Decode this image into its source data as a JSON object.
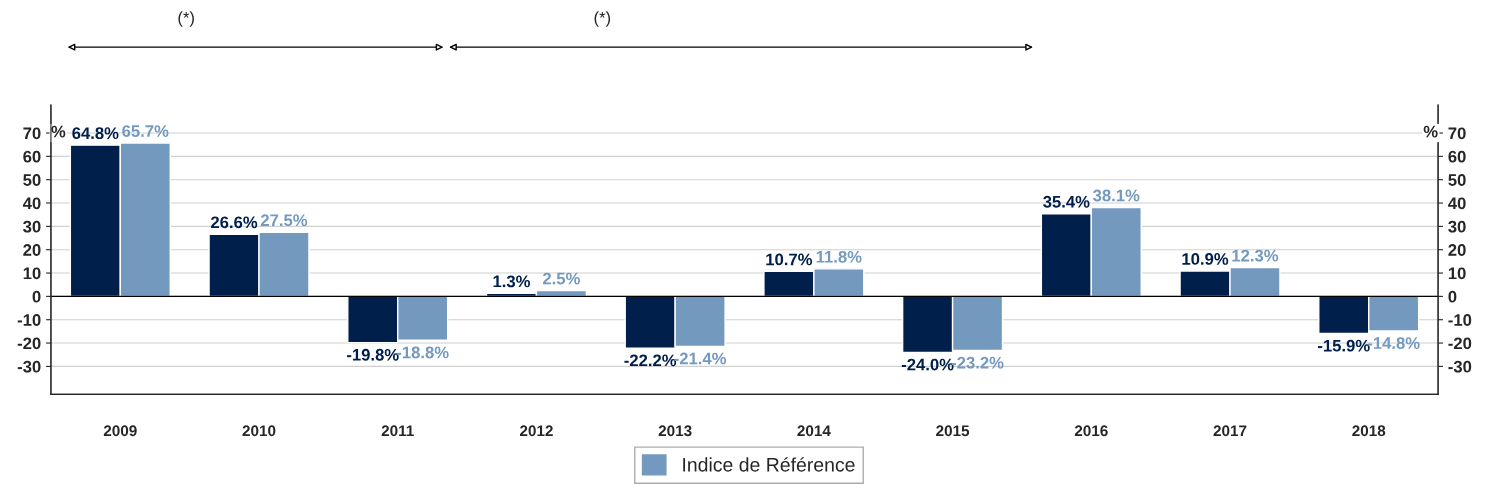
{
  "chart_data": {
    "type": "bar",
    "categories": [
      "2009",
      "2010",
      "2011",
      "2012",
      "2013",
      "2014",
      "2015",
      "2016",
      "2017",
      "2018"
    ],
    "series": [
      {
        "color": "#001f4b",
        "values": [
          64.8,
          26.6,
          -19.8,
          1.3,
          -22.2,
          10.7,
          -24.0,
          35.4,
          10.9,
          -15.9
        ],
        "value_labels": [
          "64.8%",
          "26.6%",
          "-19.8%",
          "1.3%",
          "-22.2%",
          "10.7%",
          "-24.0%",
          "35.4%",
          "10.9%",
          "-15.9%"
        ]
      },
      {
        "name": "Indice de Référence",
        "color": "#7399bf",
        "values": [
          65.7,
          27.5,
          -18.8,
          2.5,
          -21.4,
          11.8,
          -23.2,
          38.1,
          12.3,
          -14.8
        ],
        "value_labels": [
          "65.7%",
          "27.5%",
          "-18.8%",
          "2.5%",
          "-21.4%",
          "11.8%",
          "-23.2%",
          "38.1%",
          "12.3%",
          "-14.8%"
        ]
      }
    ],
    "ylabel": "%",
    "y2label": "%",
    "ylim": [
      -42,
      82
    ],
    "yticks": [
      -30,
      -20,
      -10,
      0,
      10,
      20,
      30,
      40,
      50,
      60,
      70
    ],
    "y2lim": [
      -42,
      82
    ],
    "y2ticks": [
      -30,
      -20,
      -10,
      0,
      10,
      20,
      30,
      40,
      50,
      60,
      70
    ],
    "annotations": [
      "(*)",
      "(*)"
    ],
    "grid": true,
    "legend": "bottom"
  }
}
